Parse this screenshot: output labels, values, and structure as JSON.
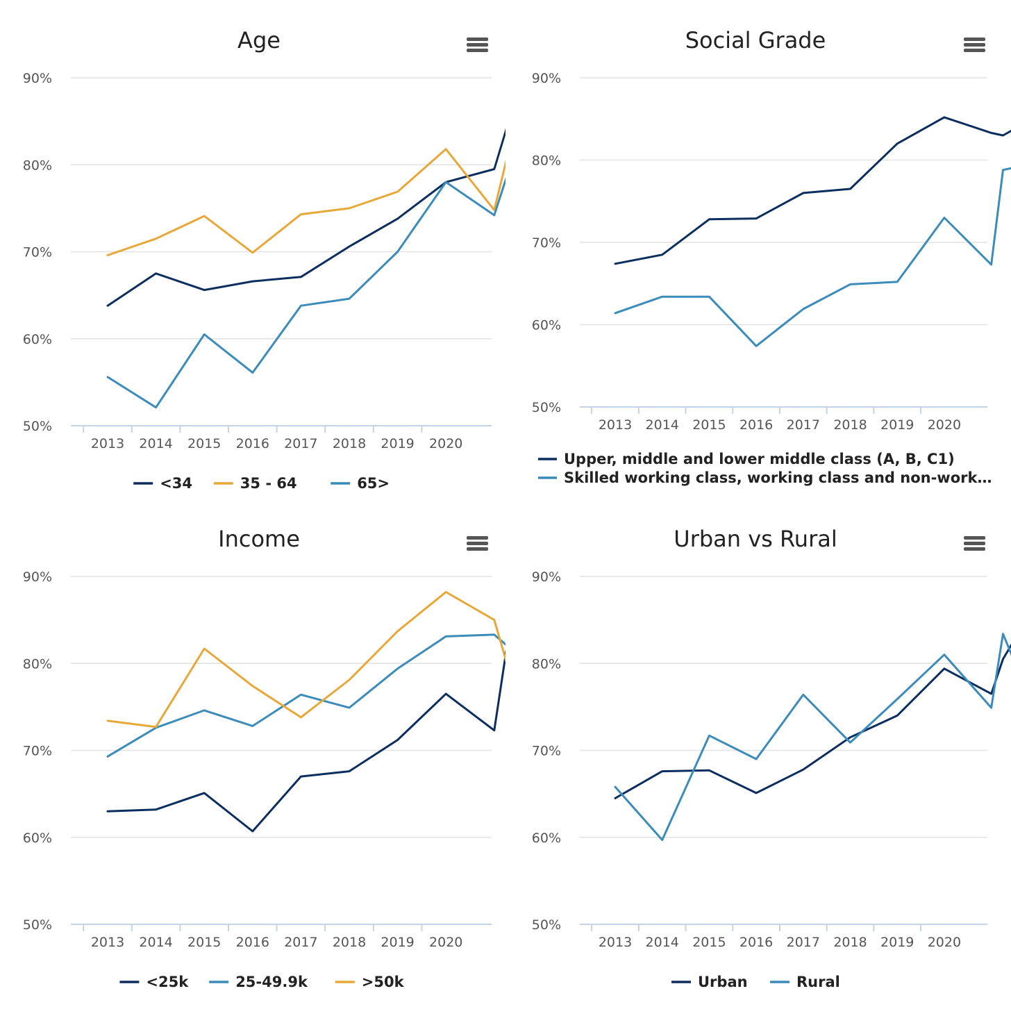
{
  "credit": "Highcharts.com",
  "colors": {
    "dark_navy": "#0b2e5f",
    "orange": "#e8a838",
    "steel_blue": "#3b8bbb"
  },
  "chart_data": [
    {
      "type": "line",
      "title": "Age",
      "ylim": [
        50,
        90
      ],
      "yticks": [
        "50%",
        "60%",
        "70%",
        "80%",
        "90%"
      ],
      "xticks": [
        "2013",
        "2014",
        "2015",
        "2016",
        "2017",
        "2018",
        "2019",
        "2020"
      ],
      "grid": true,
      "legend_position": "bottom",
      "series": [
        {
          "name": "<34",
          "color": "#0b2e5f",
          "points": [
            [
              2012.25,
              63.8
            ],
            [
              2013.25,
              67.5
            ],
            [
              2014.25,
              65.6
            ],
            [
              2015.25,
              66.6
            ],
            [
              2016.25,
              67.1
            ],
            [
              2017.25,
              70.6
            ],
            [
              2018.25,
              73.8
            ],
            [
              2019.25,
              78.0
            ],
            [
              2020.25,
              79.5
            ],
            [
              2020.5,
              84.1
            ],
            [
              2020.75,
              84.8
            ]
          ]
        },
        {
          "name": "35 - 64",
          "color": "#e8a838",
          "points": [
            [
              2012.25,
              69.6
            ],
            [
              2013.25,
              71.5
            ],
            [
              2014.25,
              74.1
            ],
            [
              2015.25,
              69.9
            ],
            [
              2016.25,
              74.3
            ],
            [
              2017.25,
              75.0
            ],
            [
              2018.25,
              76.9
            ],
            [
              2019.25,
              81.8
            ],
            [
              2020.25,
              74.8
            ],
            [
              2020.5,
              80.5
            ],
            [
              2020.75,
              80.1
            ]
          ]
        },
        {
          "name": "65>",
          "color": "#3b8bbb",
          "points": [
            [
              2012.25,
              55.6
            ],
            [
              2013.25,
              52.1
            ],
            [
              2014.25,
              60.5
            ],
            [
              2015.25,
              56.1
            ],
            [
              2016.25,
              63.8
            ],
            [
              2017.25,
              64.6
            ],
            [
              2018.25,
              70.0
            ],
            [
              2019.25,
              78.0
            ],
            [
              2020.25,
              74.2
            ],
            [
              2020.5,
              78.5
            ],
            [
              2020.75,
              80.8
            ]
          ]
        }
      ]
    },
    {
      "type": "line",
      "title": "Social Grade",
      "ylim": [
        50,
        90
      ],
      "yticks": [
        "50%",
        "60%",
        "70%",
        "80%",
        "90%"
      ],
      "xticks": [
        "2013",
        "2014",
        "2015",
        "2016",
        "2017",
        "2018",
        "2019",
        "2020"
      ],
      "grid": true,
      "legend_position": "bottom",
      "series": [
        {
          "name": "Upper, middle and lower middle class (A, B, C1)",
          "color": "#0b2e5f",
          "points": [
            [
              2012.25,
              67.4
            ],
            [
              2013.25,
              68.5
            ],
            [
              2014.25,
              72.8
            ],
            [
              2015.25,
              72.9
            ],
            [
              2016.25,
              76.0
            ],
            [
              2017.25,
              76.5
            ],
            [
              2018.25,
              82.0
            ],
            [
              2019.25,
              85.2
            ],
            [
              2020.25,
              83.3
            ],
            [
              2020.5,
              83.0
            ],
            [
              2020.75,
              83.8
            ]
          ]
        },
        {
          "name": "Skilled working class, working class and non-work…",
          "color": "#3b8bbb",
          "points": [
            [
              2012.25,
              61.4
            ],
            [
              2013.25,
              63.4
            ],
            [
              2014.25,
              63.4
            ],
            [
              2015.25,
              57.4
            ],
            [
              2016.25,
              61.9
            ],
            [
              2017.25,
              64.9
            ],
            [
              2018.25,
              65.2
            ],
            [
              2019.25,
              73.0
            ],
            [
              2020.25,
              67.3
            ],
            [
              2020.5,
              78.8
            ],
            [
              2020.75,
              79.1
            ]
          ]
        }
      ]
    },
    {
      "type": "line",
      "title": "Income",
      "ylim": [
        50,
        90
      ],
      "yticks": [
        "50%",
        "60%",
        "70%",
        "80%",
        "90%"
      ],
      "xticks": [
        "2013",
        "2014",
        "2015",
        "2016",
        "2017",
        "2018",
        "2019",
        "2020"
      ],
      "grid": true,
      "legend_position": "bottom",
      "series": [
        {
          "name": "<25k",
          "color": "#0b2e5f",
          "points": [
            [
              2012.25,
              63.0
            ],
            [
              2013.25,
              63.2
            ],
            [
              2014.25,
              65.1
            ],
            [
              2015.25,
              60.7
            ],
            [
              2016.25,
              67.0
            ],
            [
              2017.25,
              67.6
            ],
            [
              2018.25,
              71.2
            ],
            [
              2019.25,
              76.5
            ],
            [
              2020.25,
              72.3
            ],
            [
              2020.5,
              81.5
            ],
            [
              2020.75,
              80.0
            ]
          ]
        },
        {
          "name": "25-49.9k",
          "color": "#3b8bbb",
          "points": [
            [
              2012.25,
              69.3
            ],
            [
              2013.25,
              72.6
            ],
            [
              2014.25,
              74.6
            ],
            [
              2015.25,
              72.8
            ],
            [
              2016.25,
              76.4
            ],
            [
              2017.25,
              74.9
            ],
            [
              2018.25,
              79.4
            ],
            [
              2019.25,
              83.1
            ],
            [
              2020.25,
              83.3
            ],
            [
              2020.5,
              82.1
            ],
            [
              2020.75,
              82.6
            ]
          ]
        },
        {
          "name": ">50k",
          "color": "#e8a838",
          "points": [
            [
              2012.25,
              73.4
            ],
            [
              2013.25,
              72.7
            ],
            [
              2014.25,
              81.7
            ],
            [
              2015.25,
              77.4
            ],
            [
              2016.25,
              73.8
            ],
            [
              2017.25,
              78.1
            ],
            [
              2018.25,
              83.7
            ],
            [
              2019.25,
              88.2
            ],
            [
              2020.25,
              85.0
            ],
            [
              2020.5,
              80.2
            ],
            [
              2020.75,
              86.4
            ]
          ]
        }
      ]
    },
    {
      "type": "line",
      "title": "Urban vs Rural",
      "ylim": [
        50,
        90
      ],
      "yticks": [
        "50%",
        "60%",
        "70%",
        "80%",
        "90%"
      ],
      "xticks": [
        "2013",
        "2014",
        "2015",
        "2016",
        "2017",
        "2018",
        "2019",
        "2020"
      ],
      "grid": true,
      "legend_position": "bottom",
      "series": [
        {
          "name": "Urban",
          "color": "#0b2e5f",
          "points": [
            [
              2012.25,
              64.5
            ],
            [
              2013.25,
              67.6
            ],
            [
              2014.25,
              67.7
            ],
            [
              2015.25,
              65.1
            ],
            [
              2016.25,
              67.8
            ],
            [
              2017.25,
              71.5
            ],
            [
              2018.25,
              74.0
            ],
            [
              2019.25,
              79.4
            ],
            [
              2020.25,
              76.5
            ],
            [
              2020.5,
              80.5
            ],
            [
              2020.75,
              82.8
            ]
          ]
        },
        {
          "name": "Rural",
          "color": "#3b8bbb",
          "points": [
            [
              2012.25,
              65.8
            ],
            [
              2013.25,
              59.7
            ],
            [
              2014.25,
              71.7
            ],
            [
              2015.25,
              69.0
            ],
            [
              2016.25,
              76.4
            ],
            [
              2017.25,
              70.9
            ],
            [
              2018.25,
              75.9
            ],
            [
              2019.25,
              81.0
            ],
            [
              2020.25,
              74.9
            ],
            [
              2020.5,
              83.4
            ],
            [
              2020.75,
              80.1
            ]
          ]
        }
      ]
    }
  ]
}
